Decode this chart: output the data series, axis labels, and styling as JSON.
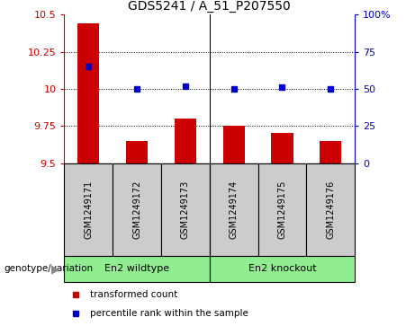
{
  "title": "GDS5241 / A_51_P207550",
  "categories": [
    "GSM1249171",
    "GSM1249172",
    "GSM1249173",
    "GSM1249174",
    "GSM1249175",
    "GSM1249176"
  ],
  "bar_values": [
    10.44,
    9.65,
    9.8,
    9.75,
    9.7,
    9.65
  ],
  "dot_values": [
    65,
    50,
    52,
    50,
    51,
    50
  ],
  "bar_color": "#cc0000",
  "dot_color": "#0000cc",
  "ylim_left": [
    9.5,
    10.5
  ],
  "ylim_right": [
    0,
    100
  ],
  "yticks_left": [
    9.5,
    9.75,
    10.0,
    10.25,
    10.5
  ],
  "yticks_right": [
    0,
    25,
    50,
    75,
    100
  ],
  "ytick_labels_left": [
    "9.5",
    "9.75",
    "10",
    "10.25",
    "10.5"
  ],
  "ytick_labels_right": [
    "0",
    "25",
    "50",
    "75",
    "100%"
  ],
  "hlines": [
    9.75,
    10.0,
    10.25
  ],
  "groups": [
    {
      "label": "En2 wildtype",
      "indices": [
        0,
        1,
        2
      ]
    },
    {
      "label": "En2 knockout",
      "indices": [
        3,
        4,
        5
      ]
    }
  ],
  "group_label": "genotype/variation",
  "legend_bar_label": "transformed count",
  "legend_dot_label": "percentile rank within the sample",
  "background_plot": "#ffffff",
  "background_label_row": "#cccccc",
  "background_group_row": "#90ee90",
  "title_fontsize": 10,
  "tick_fontsize": 8,
  "label_fontsize": 8
}
